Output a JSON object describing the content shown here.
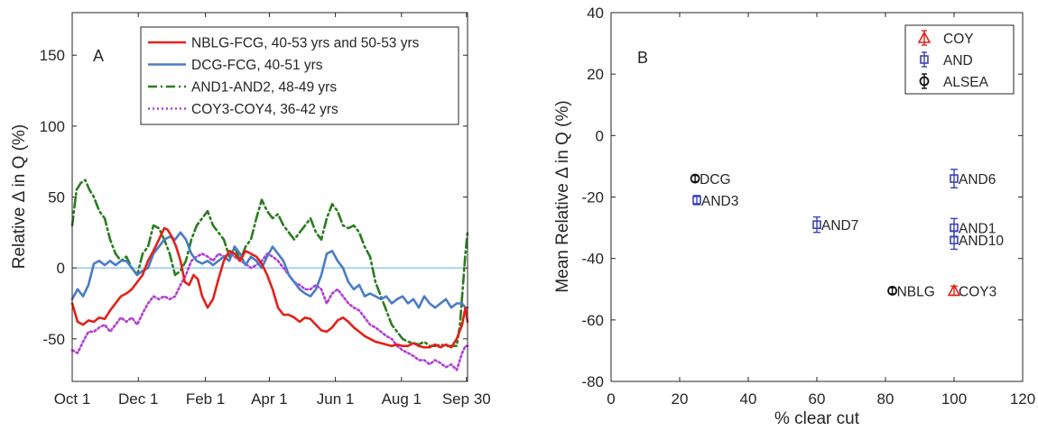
{
  "chart_data": [
    {
      "panel_label": "A",
      "type": "line",
      "xlabel": "",
      "ylabel": "Relative Δ in Q (%)",
      "xlim": [
        0,
        365
      ],
      "ylim": [
        -80,
        180
      ],
      "x_ticks": [
        {
          "value": 0,
          "label": "Oct 1"
        },
        {
          "value": 61,
          "label": "Dec 1"
        },
        {
          "value": 123,
          "label": "Feb 1"
        },
        {
          "value": 182,
          "label": "Apr 1"
        },
        {
          "value": 243,
          "label": "Jun 1"
        },
        {
          "value": 304,
          "label": "Aug 1"
        },
        {
          "value": 364,
          "label": "Sep 30"
        }
      ],
      "y_ticks": [
        -50,
        0,
        50,
        100,
        150
      ],
      "reference_line": {
        "y": 0,
        "color": "#5fb0e5"
      },
      "legend_position": "top-right",
      "series": [
        {
          "name": "NBLG-FCG, 40-53 yrs and 50-53 yrs",
          "color": "#e32119",
          "dash": "solid",
          "x": [
            0,
            5,
            10,
            15,
            20,
            25,
            30,
            35,
            40,
            45,
            50,
            55,
            60,
            65,
            70,
            75,
            80,
            85,
            88,
            92,
            96,
            100,
            104,
            108,
            112,
            116,
            120,
            125,
            130,
            135,
            140,
            145,
            150,
            155,
            160,
            165,
            170,
            175,
            180,
            185,
            190,
            195,
            200,
            205,
            210,
            215,
            220,
            225,
            230,
            235,
            240,
            245,
            250,
            255,
            260,
            265,
            270,
            275,
            280,
            285,
            290,
            295,
            300,
            305,
            310,
            315,
            320,
            325,
            330,
            335,
            340,
            345,
            350,
            355,
            360,
            363,
            365
          ],
          "y": [
            -25,
            -38,
            -40,
            -37,
            -38,
            -35,
            -36,
            -30,
            -25,
            -20,
            -18,
            -15,
            -10,
            -5,
            5,
            12,
            20,
            28,
            27,
            22,
            15,
            5,
            -10,
            -12,
            -5,
            -8,
            -20,
            -28,
            -22,
            -8,
            5,
            12,
            10,
            5,
            12,
            10,
            8,
            3,
            -5,
            -15,
            -28,
            -33,
            -33,
            -35,
            -38,
            -35,
            -36,
            -40,
            -44,
            -45,
            -42,
            -37,
            -35,
            -38,
            -42,
            -45,
            -48,
            -50,
            -52,
            -53,
            -54,
            -55,
            -54,
            -55,
            -55,
            -53,
            -55,
            -56,
            -56,
            -54,
            -56,
            -54,
            -56,
            -50,
            -40,
            -28,
            -38
          ]
        },
        {
          "name": "DCG-FCG, 40-51 yrs",
          "color": "#4a7cc6",
          "dash": "solid",
          "x": [
            0,
            5,
            10,
            15,
            20,
            25,
            30,
            35,
            40,
            45,
            50,
            55,
            60,
            65,
            70,
            75,
            80,
            85,
            90,
            95,
            100,
            105,
            110,
            115,
            120,
            125,
            130,
            135,
            140,
            145,
            150,
            155,
            160,
            165,
            170,
            175,
            180,
            185,
            190,
            195,
            200,
            205,
            210,
            215,
            220,
            225,
            230,
            235,
            240,
            245,
            250,
            255,
            260,
            265,
            270,
            275,
            280,
            285,
            290,
            295,
            300,
            305,
            310,
            315,
            320,
            325,
            330,
            335,
            340,
            345,
            350,
            355,
            360,
            363,
            365
          ],
          "y": [
            -22,
            -15,
            -20,
            -12,
            3,
            5,
            2,
            5,
            2,
            5,
            5,
            0,
            -5,
            -2,
            0,
            10,
            15,
            20,
            22,
            20,
            25,
            20,
            10,
            5,
            3,
            5,
            2,
            5,
            8,
            5,
            15,
            10,
            2,
            8,
            5,
            0,
            8,
            15,
            10,
            5,
            -5,
            -10,
            -15,
            -18,
            -20,
            -15,
            -5,
            10,
            12,
            5,
            0,
            -10,
            -15,
            -12,
            -20,
            -18,
            -20,
            -22,
            -20,
            -25,
            -22,
            -20,
            -25,
            -22,
            -28,
            -20,
            -25,
            -28,
            -25,
            -22,
            -28,
            -25,
            -25,
            -28,
            -28
          ]
        },
        {
          "name": "AND1-AND2, 48-49 yrs",
          "color": "#2a7d1f",
          "dash": "10 4 2 4",
          "x": [
            0,
            4,
            8,
            12,
            16,
            20,
            25,
            30,
            35,
            40,
            45,
            50,
            55,
            60,
            65,
            70,
            75,
            80,
            85,
            90,
            95,
            100,
            105,
            110,
            115,
            120,
            125,
            130,
            135,
            140,
            145,
            150,
            155,
            160,
            165,
            170,
            175,
            180,
            185,
            190,
            195,
            200,
            205,
            210,
            215,
            220,
            225,
            230,
            235,
            240,
            245,
            250,
            255,
            260,
            265,
            270,
            275,
            280,
            285,
            290,
            295,
            300,
            305,
            310,
            315,
            320,
            325,
            330,
            335,
            340,
            345,
            350,
            355,
            358,
            361,
            363,
            365
          ],
          "y": [
            30,
            55,
            60,
            62,
            55,
            50,
            40,
            35,
            20,
            10,
            5,
            8,
            0,
            -5,
            10,
            15,
            30,
            28,
            20,
            10,
            -5,
            -2,
            5,
            20,
            30,
            35,
            40,
            30,
            25,
            20,
            8,
            15,
            5,
            15,
            20,
            35,
            48,
            40,
            35,
            38,
            30,
            25,
            20,
            25,
            30,
            35,
            25,
            20,
            35,
            45,
            40,
            30,
            28,
            30,
            25,
            15,
            8,
            -10,
            -20,
            -30,
            -40,
            -45,
            -50,
            -52,
            -53,
            -54,
            -52,
            -55,
            -55,
            -54,
            -55,
            -55,
            -55,
            -40,
            -10,
            10,
            25
          ]
        },
        {
          "name": "COY3-COY4, 36-42 yrs",
          "color": "#b23fd4",
          "dash": "2 3",
          "x": [
            0,
            5,
            10,
            15,
            20,
            25,
            30,
            35,
            40,
            45,
            50,
            55,
            60,
            65,
            70,
            75,
            80,
            85,
            90,
            95,
            100,
            105,
            110,
            115,
            120,
            125,
            130,
            135,
            140,
            145,
            150,
            155,
            160,
            165,
            170,
            175,
            180,
            185,
            190,
            195,
            200,
            205,
            210,
            215,
            220,
            225,
            230,
            235,
            240,
            245,
            250,
            255,
            260,
            265,
            270,
            275,
            280,
            285,
            290,
            295,
            300,
            305,
            310,
            315,
            320,
            325,
            330,
            335,
            340,
            345,
            350,
            355,
            360,
            363,
            365
          ],
          "y": [
            -58,
            -60,
            -52,
            -45,
            -45,
            -42,
            -40,
            -45,
            -40,
            -35,
            -38,
            -35,
            -40,
            -32,
            -25,
            -20,
            -22,
            -20,
            -22,
            -20,
            -12,
            -5,
            5,
            8,
            10,
            8,
            5,
            10,
            8,
            10,
            8,
            5,
            3,
            0,
            2,
            5,
            10,
            8,
            5,
            0,
            -5,
            -10,
            -12,
            -15,
            -15,
            -12,
            -15,
            -25,
            -18,
            -15,
            -20,
            -25,
            -28,
            -30,
            -35,
            -40,
            -42,
            -45,
            -48,
            -50,
            -55,
            -58,
            -60,
            -62,
            -65,
            -65,
            -68,
            -65,
            -67,
            -70,
            -68,
            -72,
            -60,
            -55,
            -55
          ]
        }
      ]
    },
    {
      "panel_label": "B",
      "type": "scatter",
      "xlabel": "% clear cut",
      "ylabel": "Mean Relative Δ in Q (%)",
      "xlim": [
        0,
        120
      ],
      "ylim": [
        -80,
        40
      ],
      "x_ticks": [
        0,
        20,
        40,
        60,
        80,
        100,
        120
      ],
      "y_ticks": [
        -80,
        -60,
        -40,
        -20,
        0,
        20,
        40
      ],
      "legend_position": "top-right",
      "series": [
        {
          "name": "COY",
          "color": "#e32119",
          "marker": "triangle",
          "points": [
            {
              "label": "COY3",
              "x": 100,
              "y": -50.5,
              "err": 1.5
            }
          ]
        },
        {
          "name": "AND",
          "color": "#3b43b8",
          "marker": "square",
          "points": [
            {
              "label": "AND6",
              "x": 100,
              "y": -14,
              "err": 3
            },
            {
              "label": "AND3",
              "x": 25,
              "y": -21,
              "err": 1.5
            },
            {
              "label": "AND7",
              "x": 60,
              "y": -29,
              "err": 2.5
            },
            {
              "label": "AND1",
              "x": 100,
              "y": -30,
              "err": 3
            },
            {
              "label": "AND10",
              "x": 100,
              "y": -34,
              "err": 3
            }
          ]
        },
        {
          "name": "ALSEA",
          "color": "#111111",
          "marker": "circle",
          "points": [
            {
              "label": "DCG",
              "x": 24.5,
              "y": -14,
              "err": 1
            },
            {
              "label": "NBLG",
              "x": 82,
              "y": -50.5,
              "err": 1
            }
          ]
        }
      ]
    }
  ]
}
